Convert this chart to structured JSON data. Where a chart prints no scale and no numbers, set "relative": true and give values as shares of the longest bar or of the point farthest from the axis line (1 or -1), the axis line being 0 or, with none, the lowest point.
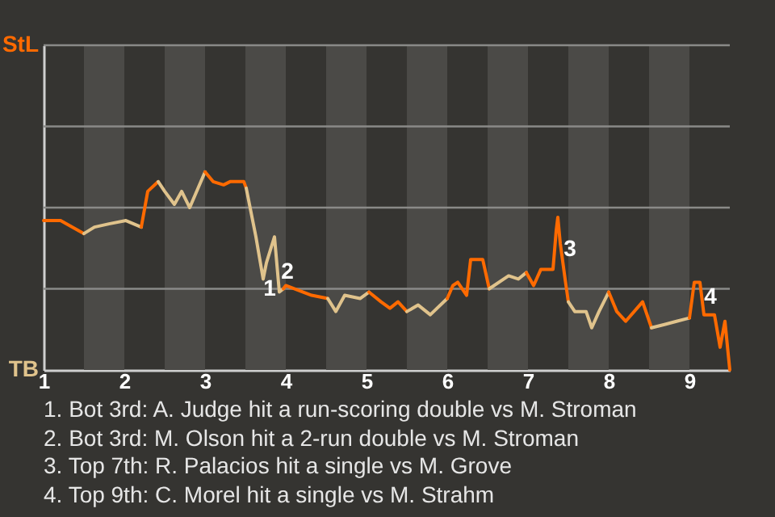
{
  "chart_data": {
    "type": "line",
    "relative": true,
    "series": [
      {
        "name": "StL",
        "color": "#ff6a00",
        "x": [
          1.0,
          1.21,
          1.5
        ],
        "values": [
          -0.08,
          -0.08,
          -0.16
        ]
      },
      {
        "name": "TB",
        "color": "#e0c38c",
        "x": [
          1.5,
          1.63,
          1.81,
          2.02,
          2.21
        ],
        "values": [
          -0.16,
          -0.12,
          -0.1,
          -0.08,
          -0.12
        ]
      },
      {
        "color": "#ff6a00",
        "x": [
          2.21,
          2.29,
          2.42
        ],
        "values": [
          -0.12,
          0.1,
          0.16
        ]
      },
      {
        "color": "#e0c38c",
        "x": [
          2.42,
          2.5,
          2.62,
          2.71,
          2.81,
          3.0
        ],
        "values": [
          0.16,
          0.1,
          0.02,
          0.1,
          0,
          0.22
        ]
      },
      {
        "color": "#ff6a00",
        "x": [
          3.0,
          3.1,
          3.23,
          3.31,
          3.48,
          3.51
        ],
        "values": [
          0.22,
          0.16,
          0.14,
          0.16,
          0.16,
          0.12
        ]
      },
      {
        "color": "#e0c38c",
        "x": [
          3.51,
          3.63,
          3.72,
          3.76,
          3.86,
          3.92,
          3.97
        ],
        "values": [
          0.12,
          -0.18,
          -0.44,
          -0.34,
          -0.18,
          -0.52,
          -0.5
        ]
      },
      {
        "color": "#ff6a00",
        "x": [
          3.97,
          4.0,
          4.32,
          4.52
        ],
        "values": [
          -0.5,
          -0.48,
          -0.54,
          -0.56
        ]
      },
      {
        "color": "#e0c38c",
        "x": [
          4.52,
          4.62,
          4.73,
          4.92,
          5.03
        ],
        "values": [
          -0.56,
          -0.64,
          -0.54,
          -0.56,
          -0.52
        ]
      },
      {
        "color": "#ff6a00",
        "x": [
          5.03,
          5.18,
          5.29,
          5.39,
          5.5
        ],
        "values": [
          -0.52,
          -0.58,
          -0.62,
          -0.58,
          -0.64
        ]
      },
      {
        "color": "#e0c38c",
        "x": [
          5.5,
          5.64,
          5.79,
          6.0
        ],
        "values": [
          -0.64,
          -0.6,
          -0.66,
          -0.56
        ]
      },
      {
        "color": "#ff6a00",
        "x": [
          6.0,
          6.07,
          6.13,
          6.24,
          6.29,
          6.44,
          6.52
        ],
        "values": [
          -0.56,
          -0.48,
          -0.46,
          -0.54,
          -0.32,
          -0.32,
          -0.5
        ]
      },
      {
        "color": "#e0c38c",
        "x": [
          6.52,
          6.76,
          6.88,
          6.98
        ],
        "values": [
          -0.5,
          -0.42,
          -0.44,
          -0.4
        ]
      },
      {
        "color": "#ff6a00",
        "x": [
          6.98,
          7.07,
          7.16,
          7.31,
          7.35,
          7.37,
          7.4,
          7.46,
          7.5
        ],
        "values": [
          -0.4,
          -0.48,
          -0.38,
          -0.38,
          -0.14,
          -0.06,
          -0.22,
          -0.44,
          -0.58
        ]
      },
      {
        "color": "#e0c38c",
        "x": [
          7.5,
          7.58,
          7.72,
          7.79,
          7.88,
          8.0
        ],
        "values": [
          -0.58,
          -0.64,
          -0.64,
          -0.74,
          -0.64,
          -0.52
        ]
      },
      {
        "color": "#ff6a00",
        "x": [
          8.0,
          8.1,
          8.21,
          8.42,
          8.53
        ],
        "values": [
          -0.52,
          -0.64,
          -0.7,
          -0.58,
          -0.74
        ]
      },
      {
        "color": "#e0c38c",
        "x": [
          8.53,
          8.69,
          8.84,
          9.0
        ],
        "values": [
          -0.74,
          -0.72,
          -0.7,
          -0.68
        ]
      },
      {
        "color": "#ff6a00",
        "x": [
          9.0,
          9.06,
          9.13,
          9.18,
          9.31,
          9.38,
          9.44,
          9.5
        ],
        "values": [
          -0.68,
          -0.46,
          -0.46,
          -0.66,
          -0.66,
          -0.86,
          -0.7,
          -1
        ]
      }
    ],
    "xlim": [
      1,
      9.5
    ],
    "xticks": [
      1,
      2,
      3,
      4,
      5,
      6,
      7,
      8,
      9
    ],
    "ref_lines": [
      {
        "axis": "y",
        "value": -0.5,
        "color": "#8a8a88"
      },
      {
        "axis": "y",
        "value": 0,
        "color": "#8a8a88"
      },
      {
        "axis": "y",
        "value": 0.5,
        "color": "#8a8a88"
      },
      {
        "axis": "y",
        "value": 1,
        "color": "#8a8a88"
      }
    ],
    "bands": [
      {
        "axis": "x",
        "from": 1.5,
        "to": 2,
        "color": "#4b4a47"
      },
      {
        "axis": "x",
        "from": 2.5,
        "to": 3,
        "color": "#4b4a47"
      },
      {
        "axis": "x",
        "from": 3.5,
        "to": 4,
        "color": "#4b4a47"
      },
      {
        "axis": "x",
        "from": 4.5,
        "to": 5,
        "color": "#4b4a47"
      },
      {
        "axis": "x",
        "from": 5.5,
        "to": 6,
        "color": "#4b4a47"
      },
      {
        "axis": "x",
        "from": 6.5,
        "to": 7,
        "color": "#4b4a47"
      },
      {
        "axis": "x",
        "from": 7.5,
        "to": 8,
        "color": "#4b4a47"
      },
      {
        "axis": "x",
        "from": 8.5,
        "to": 9,
        "color": "#4b4a47"
      }
    ],
    "annotations": [
      {
        "text": "1",
        "x": 3.8,
        "y": -0.5
      },
      {
        "text": "2",
        "x": 4.02,
        "y": -0.4
      },
      {
        "text": "3",
        "x": 7.52,
        "y": -0.26
      },
      {
        "text": "4",
        "x": 9.26,
        "y": -0.55
      },
      "1. Bot 3rd: A. Judge hit a run-scoring double vs M. Stroman",
      "2. Bot 3rd: M. Olson hit a 2-run double vs M. Stroman",
      "3. Top 7th: R. Palacios hit a single vs M. Grove",
      "4. Top 9th: C. Morel hit a single vs M. Strahm"
    ]
  }
}
